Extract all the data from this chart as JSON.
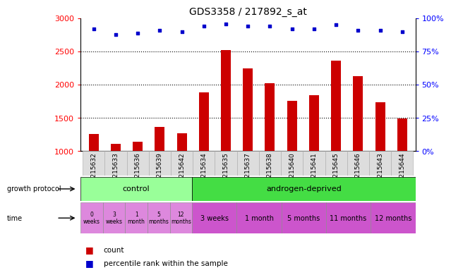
{
  "title": "GDS3358 / 217892_s_at",
  "samples": [
    "GSM215632",
    "GSM215633",
    "GSM215636",
    "GSM215639",
    "GSM215642",
    "GSM215634",
    "GSM215635",
    "GSM215637",
    "GSM215638",
    "GSM215640",
    "GSM215641",
    "GSM215645",
    "GSM215646",
    "GSM215643",
    "GSM215644"
  ],
  "counts": [
    1260,
    1110,
    1140,
    1365,
    1265,
    1880,
    2520,
    2250,
    2020,
    1755,
    1840,
    2360,
    2130,
    1730,
    1490
  ],
  "percentiles": [
    92,
    88,
    89,
    91,
    90,
    94,
    96,
    94,
    94,
    92,
    92,
    95,
    91,
    91,
    90
  ],
  "bar_color": "#cc0000",
  "dot_color": "#0000cc",
  "ylim_left": [
    1000,
    3000
  ],
  "ylim_right": [
    0,
    100
  ],
  "yticks_left": [
    1000,
    1500,
    2000,
    2500,
    3000
  ],
  "yticks_right": [
    0,
    25,
    50,
    75,
    100
  ],
  "dotted_lines": [
    1500,
    2000,
    2500
  ],
  "growth_protocol_label": "growth protocol",
  "time_label": "time",
  "control_label": "control",
  "androgen_label": "androgen-deprived",
  "control_color": "#99ff99",
  "androgen_color": "#44dd44",
  "time_color_light": "#dd88dd",
  "time_color_dark": "#cc55cc",
  "time_control_labels": [
    "0\nweeks",
    "3\nweeks",
    "1\nmonth",
    "5\nmonths",
    "12\nmonths"
  ],
  "time_androgen_labels": [
    "3 weeks",
    "1 month",
    "5 months",
    "11 months",
    "12 months"
  ],
  "legend_count": "count",
  "legend_percentile": "percentile rank within the sample",
  "n_control": 5,
  "n_androgen": 10,
  "xlabel_bg": "#dddddd"
}
